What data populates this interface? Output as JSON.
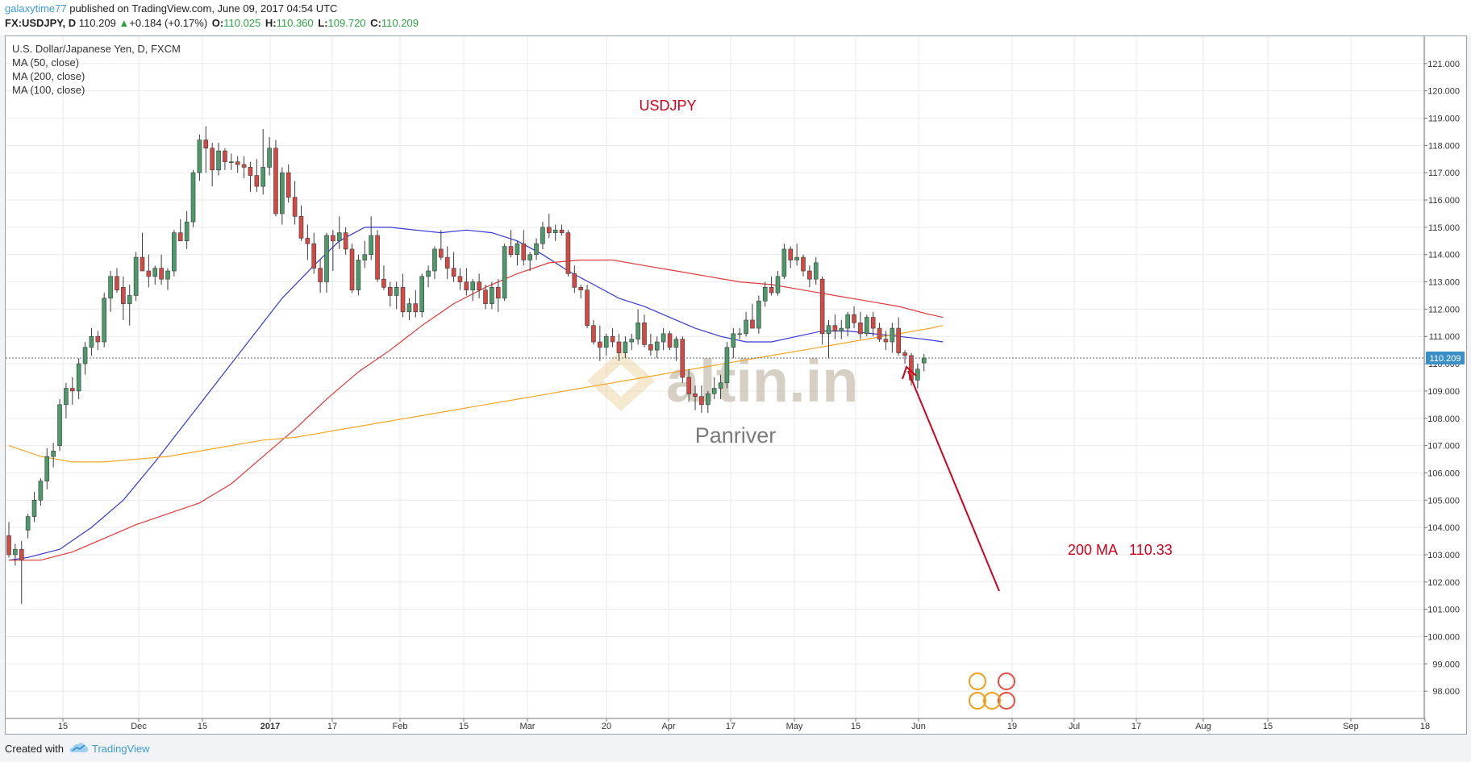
{
  "header": {
    "username": "galaxytime77",
    "published": " published on TradingView.com, June 09, 2017 04:54 UTC",
    "symbol": "FX:USDJPY, D",
    "last": "110.209",
    "change_arrow": "▲",
    "change": "+0.184 (+0.17%)",
    "open_label": "O:",
    "open": "110.025",
    "high_label": "H:",
    "high": "110.360",
    "low_label": "L:",
    "low": "109.720",
    "close_label": "C:",
    "close": "110.209"
  },
  "legend": {
    "title": "U.S. Dollar/Japanese Yen, D, FXCM",
    "ma50": "MA (50, close)",
    "ma200": "MA (200, close)",
    "ma100": "MA (100, close)"
  },
  "annotations": {
    "symbol_title": "USDJPY",
    "ma_note": "200 MA   110.33",
    "watermark_logo": "altin.in",
    "watermark_name": "Panriver"
  },
  "footer": {
    "created_with": "Created with",
    "brand": "TradingView"
  },
  "colors": {
    "up": "#4c9a6a",
    "down": "#d24a43",
    "ma50": "#3438d8",
    "ma200": "#f5a623",
    "ma100": "#e3383a",
    "annotation": "#d0021b",
    "price_tag": "#3a8fc9"
  },
  "chart_data": {
    "type": "candlestick",
    "symbol": "USDJPY",
    "timeframe": "D",
    "ylim": [
      97.0,
      122.0
    ],
    "y_ticks": [
      "98.000",
      "99.000",
      "100.000",
      "101.000",
      "102.000",
      "103.000",
      "104.000",
      "105.000",
      "106.000",
      "107.000",
      "108.000",
      "109.000",
      "110.000",
      "111.000",
      "112.000",
      "113.000",
      "114.000",
      "115.000",
      "116.000",
      "117.000",
      "118.000",
      "119.000",
      "120.000",
      "121.000"
    ],
    "x_ticks": [
      "15",
      "Dec",
      "15",
      "2017",
      "17",
      "Feb",
      "15",
      "Mar",
      "20",
      "Apr",
      "17",
      "May",
      "15",
      "Jun",
      "19",
      "Jul",
      "17",
      "Aug",
      "15",
      "Sep",
      "18"
    ],
    "last_price_label": "110.209",
    "grid": true,
    "candles_ohlc": [
      [
        103.7,
        104.2,
        102.9,
        103.0
      ],
      [
        103.0,
        103.4,
        102.6,
        103.2
      ],
      [
        103.2,
        103.5,
        101.2,
        102.8
      ],
      [
        103.9,
        104.5,
        103.6,
        104.4
      ],
      [
        104.4,
        105.3,
        104.2,
        105.0
      ],
      [
        105.0,
        105.8,
        104.8,
        105.7
      ],
      [
        105.7,
        106.9,
        105.4,
        106.6
      ],
      [
        106.6,
        107.1,
        106.2,
        106.8
      ],
      [
        107.0,
        108.7,
        106.8,
        108.5
      ],
      [
        108.5,
        109.3,
        108.0,
        109.1
      ],
      [
        109.1,
        109.5,
        108.5,
        109.0
      ],
      [
        109.0,
        110.2,
        108.7,
        110.0
      ],
      [
        110.0,
        110.8,
        109.6,
        110.6
      ],
      [
        110.6,
        111.3,
        110.3,
        111.0
      ],
      [
        111.0,
        111.2,
        110.5,
        110.8
      ],
      [
        110.8,
        112.6,
        110.6,
        112.4
      ],
      [
        112.4,
        113.4,
        111.9,
        113.2
      ],
      [
        113.2,
        113.5,
        112.6,
        112.7
      ],
      [
        112.8,
        113.2,
        111.6,
        112.2
      ],
      [
        112.2,
        112.9,
        111.4,
        112.5
      ],
      [
        112.5,
        114.1,
        112.3,
        113.9
      ],
      [
        113.9,
        114.8,
        113.5,
        113.4
      ],
      [
        113.4,
        114.0,
        112.8,
        113.2
      ],
      [
        113.2,
        113.6,
        112.9,
        113.5
      ],
      [
        113.5,
        114.0,
        112.9,
        113.1
      ],
      [
        113.1,
        113.5,
        112.7,
        113.4
      ],
      [
        113.4,
        114.9,
        113.2,
        114.8
      ],
      [
        114.8,
        115.3,
        114.5,
        114.5
      ],
      [
        114.5,
        115.6,
        114.2,
        115.2
      ],
      [
        115.2,
        117.1,
        115.0,
        117.0
      ],
      [
        117.0,
        118.4,
        116.7,
        118.2
      ],
      [
        118.2,
        118.7,
        117.0,
        117.9
      ],
      [
        117.9,
        118.1,
        116.5,
        117.1
      ],
      [
        117.1,
        118.1,
        116.9,
        117.8
      ],
      [
        117.8,
        117.9,
        117.1,
        117.4
      ],
      [
        117.4,
        117.7,
        117.1,
        117.4
      ],
      [
        117.4,
        117.6,
        117.0,
        117.3
      ],
      [
        117.3,
        117.6,
        116.8,
        117.2
      ],
      [
        117.2,
        117.4,
        116.3,
        116.9
      ],
      [
        116.9,
        117.5,
        116.3,
        116.5
      ],
      [
        116.5,
        118.6,
        116.2,
        117.2
      ],
      [
        117.2,
        118.3,
        116.9,
        117.9
      ],
      [
        117.9,
        118.2,
        115.4,
        115.5
      ],
      [
        115.5,
        117.2,
        115.1,
        117.0
      ],
      [
        117.0,
        117.3,
        115.9,
        116.1
      ],
      [
        116.1,
        116.7,
        115.1,
        115.4
      ],
      [
        115.4,
        115.8,
        114.5,
        114.6
      ],
      [
        114.6,
        115.1,
        113.8,
        114.4
      ],
      [
        114.4,
        114.8,
        113.3,
        113.5
      ],
      [
        113.5,
        113.8,
        112.6,
        113.0
      ],
      [
        113.0,
        114.8,
        112.6,
        114.7
      ],
      [
        114.7,
        114.9,
        113.4,
        114.5
      ],
      [
        114.5,
        115.4,
        114.2,
        114.8
      ],
      [
        114.8,
        115.0,
        114.0,
        114.2
      ],
      [
        114.2,
        114.4,
        112.6,
        112.7
      ],
      [
        112.7,
        114.0,
        112.5,
        113.8
      ],
      [
        113.8,
        114.5,
        113.5,
        114.0
      ],
      [
        114.0,
        115.4,
        113.8,
        114.7
      ],
      [
        114.7,
        114.9,
        113.0,
        113.1
      ],
      [
        113.1,
        113.6,
        112.7,
        112.8
      ],
      [
        112.8,
        113.0,
        112.1,
        112.5
      ],
      [
        112.5,
        113.0,
        112.0,
        112.8
      ],
      [
        112.8,
        113.3,
        111.7,
        111.9
      ],
      [
        111.9,
        112.4,
        111.6,
        112.2
      ],
      [
        112.2,
        112.7,
        111.7,
        111.9
      ],
      [
        111.9,
        113.3,
        111.7,
        113.2
      ],
      [
        113.2,
        113.6,
        112.8,
        113.4
      ],
      [
        113.4,
        114.3,
        113.1,
        114.2
      ],
      [
        114.2,
        114.9,
        113.8,
        113.9
      ],
      [
        113.9,
        114.3,
        113.1,
        113.5
      ],
      [
        113.5,
        114.1,
        113.0,
        113.2
      ],
      [
        113.2,
        113.5,
        112.7,
        113.0
      ],
      [
        113.0,
        113.5,
        112.5,
        112.7
      ],
      [
        112.7,
        113.1,
        112.3,
        113.0
      ],
      [
        113.0,
        113.3,
        112.4,
        112.7
      ],
      [
        112.7,
        112.9,
        112.0,
        112.2
      ],
      [
        112.2,
        113.0,
        112.0,
        112.8
      ],
      [
        112.8,
        113.1,
        111.9,
        112.4
      ],
      [
        112.4,
        114.4,
        112.3,
        114.3
      ],
      [
        114.3,
        114.9,
        113.9,
        114.0
      ],
      [
        114.0,
        114.5,
        113.6,
        114.4
      ],
      [
        114.4,
        114.9,
        113.6,
        113.8
      ],
      [
        113.8,
        114.1,
        113.4,
        114.0
      ],
      [
        114.0,
        114.6,
        113.8,
        114.4
      ],
      [
        114.4,
        115.2,
        114.2,
        115.0
      ],
      [
        115.0,
        115.5,
        114.6,
        114.8
      ],
      [
        114.8,
        115.1,
        114.5,
        114.9
      ],
      [
        114.9,
        115.1,
        114.7,
        114.8
      ],
      [
        114.8,
        114.9,
        113.2,
        113.3
      ],
      [
        113.3,
        113.6,
        112.6,
        112.8
      ],
      [
        112.8,
        112.9,
        112.4,
        112.7
      ],
      [
        112.7,
        112.9,
        111.3,
        111.4
      ],
      [
        111.4,
        111.6,
        110.7,
        110.8
      ],
      [
        110.8,
        111.4,
        110.1,
        110.6
      ],
      [
        110.6,
        111.1,
        110.3,
        111.0
      ],
      [
        111.0,
        111.3,
        110.6,
        110.8
      ],
      [
        110.8,
        111.1,
        110.1,
        110.4
      ],
      [
        110.4,
        111.0,
        110.2,
        110.8
      ],
      [
        110.8,
        111.1,
        110.5,
        110.9
      ],
      [
        110.9,
        112.0,
        110.7,
        111.5
      ],
      [
        111.5,
        111.8,
        110.6,
        110.7
      ],
      [
        110.7,
        111.1,
        110.3,
        110.5
      ],
      [
        110.5,
        111.0,
        110.2,
        110.8
      ],
      [
        110.8,
        111.3,
        110.5,
        111.1
      ],
      [
        111.1,
        111.2,
        110.5,
        110.6
      ],
      [
        110.6,
        111.0,
        110.1,
        110.9
      ],
      [
        110.9,
        111.0,
        109.3,
        109.5
      ],
      [
        109.5,
        109.8,
        108.6,
        108.9
      ],
      [
        108.9,
        109.2,
        108.3,
        108.8
      ],
      [
        108.8,
        109.2,
        108.2,
        108.5
      ],
      [
        108.5,
        109.0,
        108.2,
        108.9
      ],
      [
        108.9,
        109.5,
        108.7,
        109.1
      ],
      [
        109.1,
        109.6,
        108.7,
        109.3
      ],
      [
        109.3,
        110.8,
        109.1,
        110.6
      ],
      [
        110.6,
        111.3,
        110.2,
        111.1
      ],
      [
        111.1,
        111.3,
        110.9,
        111.1
      ],
      [
        111.1,
        111.9,
        111.0,
        111.6
      ],
      [
        111.6,
        112.2,
        111.3,
        111.3
      ],
      [
        111.3,
        112.5,
        111.1,
        112.3
      ],
      [
        112.3,
        113.0,
        112.1,
        112.8
      ],
      [
        112.8,
        113.2,
        112.5,
        112.6
      ],
      [
        112.6,
        113.4,
        112.5,
        113.2
      ],
      [
        113.2,
        114.4,
        113.1,
        114.2
      ],
      [
        114.2,
        114.3,
        113.5,
        113.8
      ],
      [
        113.8,
        114.4,
        113.6,
        113.9
      ],
      [
        113.9,
        114.0,
        113.2,
        113.4
      ],
      [
        113.4,
        113.6,
        112.8,
        113.1
      ],
      [
        113.1,
        113.9,
        112.9,
        113.7
      ],
      [
        113.1,
        113.2,
        110.7,
        111.1
      ],
      [
        111.1,
        111.6,
        110.2,
        111.4
      ],
      [
        111.4,
        111.8,
        110.9,
        111.2
      ],
      [
        111.2,
        111.6,
        110.9,
        111.3
      ],
      [
        111.3,
        111.9,
        111.0,
        111.8
      ],
      [
        111.8,
        112.1,
        111.3,
        111.5
      ],
      [
        111.5,
        111.9,
        110.9,
        111.1
      ],
      [
        111.1,
        111.8,
        111.0,
        111.7
      ],
      [
        111.7,
        111.9,
        111.0,
        111.3
      ],
      [
        111.3,
        111.5,
        110.8,
        110.9
      ],
      [
        110.9,
        111.2,
        110.5,
        110.8
      ],
      [
        110.8,
        111.5,
        110.4,
        111.3
      ],
      [
        111.3,
        111.7,
        110.3,
        110.4
      ],
      [
        110.4,
        110.5,
        110.0,
        110.3
      ],
      [
        110.3,
        110.4,
        109.2,
        109.4
      ],
      [
        109.4,
        110.0,
        109.1,
        109.8
      ],
      [
        110.03,
        110.36,
        109.72,
        110.21
      ]
    ],
    "series": [
      {
        "name": "MA (50, close)",
        "points": [
          [
            0,
            102.8
          ],
          [
            3,
            102.9
          ],
          [
            8,
            103.2
          ],
          [
            13,
            104.0
          ],
          [
            18,
            105.0
          ],
          [
            23,
            106.4
          ],
          [
            28,
            107.9
          ],
          [
            33,
            109.4
          ],
          [
            38,
            110.9
          ],
          [
            43,
            112.4
          ],
          [
            48,
            113.6
          ],
          [
            52,
            114.5
          ],
          [
            56,
            115.0
          ],
          [
            60,
            115.0
          ],
          [
            64,
            114.9
          ],
          [
            68,
            114.8
          ],
          [
            72,
            114.9
          ],
          [
            76,
            114.8
          ],
          [
            80,
            114.5
          ],
          [
            84,
            114.0
          ],
          [
            88,
            113.4
          ],
          [
            92,
            112.9
          ],
          [
            96,
            112.4
          ],
          [
            100,
            112.1
          ],
          [
            104,
            111.7
          ],
          [
            108,
            111.3
          ],
          [
            112,
            111.0
          ],
          [
            116,
            110.8
          ],
          [
            120,
            110.8
          ],
          [
            124,
            111.0
          ],
          [
            128,
            111.2
          ],
          [
            132,
            111.2
          ],
          [
            136,
            111.1
          ],
          [
            140,
            111.0
          ],
          [
            144,
            110.9
          ],
          [
            147,
            110.8
          ]
        ]
      },
      {
        "name": "MA (100, close)",
        "points": [
          [
            0,
            102.8
          ],
          [
            5,
            102.8
          ],
          [
            10,
            103.1
          ],
          [
            15,
            103.6
          ],
          [
            20,
            104.1
          ],
          [
            25,
            104.5
          ],
          [
            30,
            104.9
          ],
          [
            35,
            105.6
          ],
          [
            40,
            106.6
          ],
          [
            45,
            107.6
          ],
          [
            50,
            108.7
          ],
          [
            55,
            109.7
          ],
          [
            60,
            110.5
          ],
          [
            65,
            111.4
          ],
          [
            70,
            112.2
          ],
          [
            75,
            112.8
          ],
          [
            80,
            113.3
          ],
          [
            85,
            113.7
          ],
          [
            90,
            113.8
          ],
          [
            95,
            113.8
          ],
          [
            100,
            113.6
          ],
          [
            105,
            113.4
          ],
          [
            110,
            113.2
          ],
          [
            115,
            113.0
          ],
          [
            120,
            112.9
          ],
          [
            125,
            112.7
          ],
          [
            130,
            112.5
          ],
          [
            135,
            112.3
          ],
          [
            140,
            112.1
          ],
          [
            145,
            111.8
          ],
          [
            147,
            111.7
          ]
        ]
      },
      {
        "name": "MA (200, close)",
        "points": [
          [
            0,
            107.0
          ],
          [
            5,
            106.6
          ],
          [
            10,
            106.4
          ],
          [
            15,
            106.4
          ],
          [
            20,
            106.5
          ],
          [
            25,
            106.6
          ],
          [
            30,
            106.8
          ],
          [
            35,
            107.0
          ],
          [
            40,
            107.2
          ],
          [
            45,
            107.3
          ],
          [
            50,
            107.5
          ],
          [
            55,
            107.7
          ],
          [
            60,
            107.9
          ],
          [
            65,
            108.1
          ],
          [
            70,
            108.3
          ],
          [
            75,
            108.5
          ],
          [
            80,
            108.7
          ],
          [
            85,
            108.9
          ],
          [
            90,
            109.1
          ],
          [
            95,
            109.3
          ],
          [
            100,
            109.5
          ],
          [
            105,
            109.7
          ],
          [
            110,
            109.9
          ],
          [
            115,
            110.1
          ],
          [
            120,
            110.3
          ],
          [
            125,
            110.5
          ],
          [
            130,
            110.7
          ],
          [
            135,
            110.9
          ],
          [
            140,
            111.1
          ],
          [
            145,
            111.3
          ],
          [
            147,
            111.4
          ]
        ]
      }
    ],
    "note_annotations": [
      "USDJPY",
      "200 MA   110.33"
    ]
  }
}
